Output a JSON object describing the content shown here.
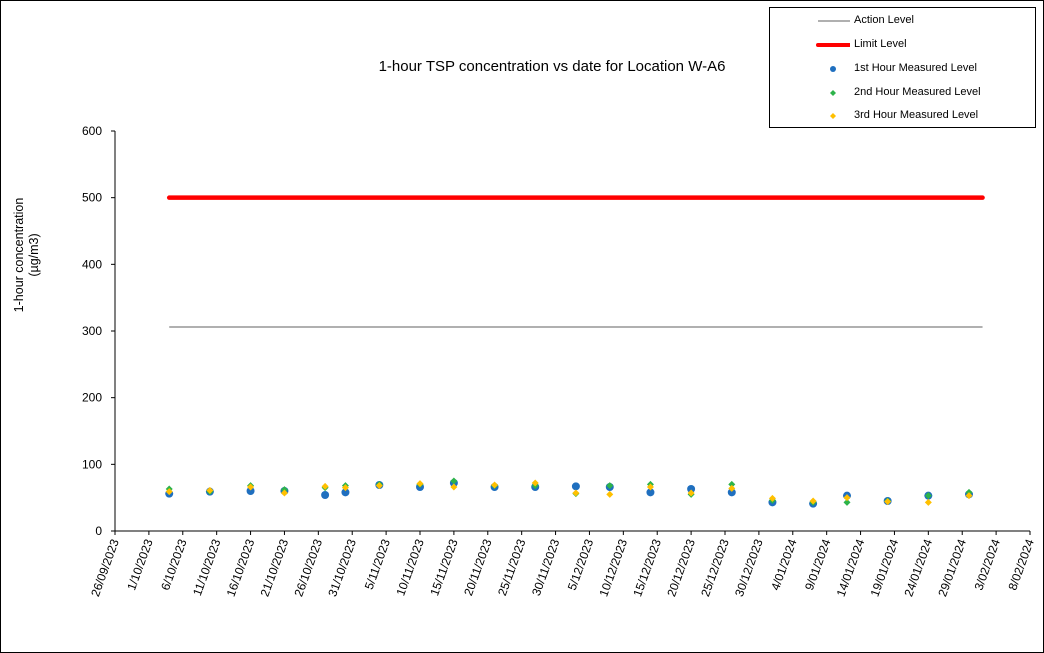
{
  "chart_data": {
    "type": "scatter",
    "title": "1-hour TSP concentration vs date for Location  W-A6",
    "ylabel_line1": "1-hour concentration",
    "ylabel_line2": "(µg/m3)",
    "xlabel": "",
    "ylim": [
      0,
      600
    ],
    "yticks": [
      "0",
      "100",
      "200",
      "300",
      "400",
      "500",
      "600"
    ],
    "xlim": [
      "2023-09-26",
      "2024-02-08"
    ],
    "xticks": [
      "26/09/2023",
      "1/10/2023",
      "6/10/2023",
      "11/10/2023",
      "16/10/2023",
      "21/10/2023",
      "26/10/2023",
      "31/10/2023",
      "5/11/2023",
      "10/11/2023",
      "15/11/2023",
      "20/11/2023",
      "25/11/2023",
      "30/11/2023",
      "5/12/2023",
      "10/12/2023",
      "15/12/2023",
      "20/12/2023",
      "25/12/2023",
      "30/12/2023",
      "4/01/2024",
      "9/01/2024",
      "14/01/2024",
      "19/01/2024",
      "24/01/2024",
      "29/01/2024",
      "3/02/2024",
      "8/02/2024"
    ],
    "legend_position": "top-right",
    "grid": false,
    "action_level": {
      "name": "Action Level",
      "value": 306,
      "color": "#808080",
      "x": [
        "2023-10-04",
        "2024-02-01"
      ]
    },
    "limit_level": {
      "name": "Limit Level",
      "value": 500,
      "color": "#ff0000",
      "x": [
        "2023-10-04",
        "2024-02-01"
      ]
    },
    "dates": [
      "2023-10-04",
      "2023-10-10",
      "2023-10-16",
      "2023-10-21",
      "2023-10-27",
      "2023-10-30",
      "2023-11-04",
      "2023-11-10",
      "2023-11-15",
      "2023-11-21",
      "2023-11-27",
      "2023-12-03",
      "2023-12-08",
      "2023-12-14",
      "2023-12-20",
      "2023-12-26",
      "2024-01-01",
      "2024-01-07",
      "2024-01-12",
      "2024-01-18",
      "2024-01-24",
      "2024-01-30"
    ],
    "series": [
      {
        "name": "1st Hour Measured Level",
        "color": "#1f6fbf",
        "marker": "circle",
        "values": [
          56,
          59,
          60,
          60,
          54,
          58,
          69,
          66,
          72,
          66,
          66,
          67,
          66,
          58,
          63,
          58,
          43,
          41,
          53,
          45,
          53,
          55
        ]
      },
      {
        "name": "2nd Hour Measured Level",
        "color": "#2db34a",
        "marker": "diamond",
        "values": [
          63,
          59,
          68,
          62,
          65,
          68,
          70,
          70,
          75,
          68,
          68,
          56,
          68,
          70,
          55,
          70,
          46,
          43,
          43,
          45,
          53,
          58
        ]
      },
      {
        "name": "3rd Hour Measured Level",
        "color": "#ffc000",
        "marker": "diamond",
        "values": [
          59,
          61,
          66,
          57,
          67,
          65,
          68,
          71,
          66,
          69,
          72,
          57,
          55,
          66,
          57,
          64,
          49,
          45,
          50,
          44,
          43,
          53
        ]
      }
    ]
  }
}
